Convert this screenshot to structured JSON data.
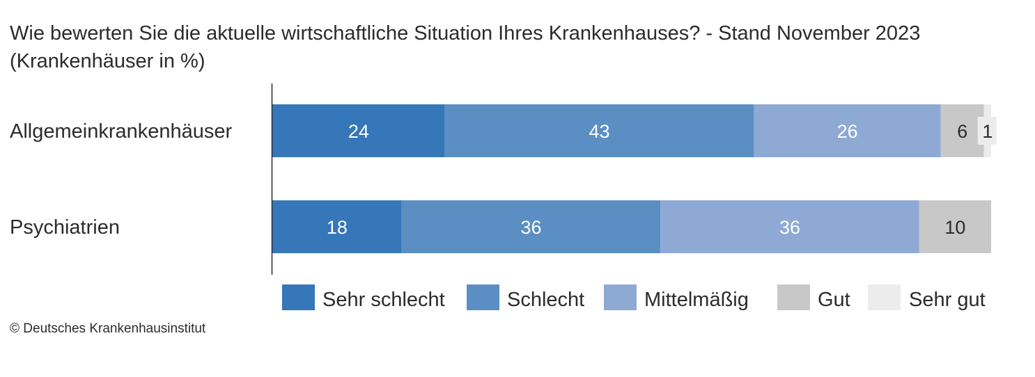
{
  "title_line1": "Wie bewerten Sie die aktuelle wirtschaftliche Situation Ihres Krankenhauses? - Stand November 2023",
  "title_line2": "(Krankenhäuser in %)",
  "copyright": "© Deutsches Krankenhausinstitut",
  "colors": {
    "Sehr schlecht": "#3577b8",
    "Schlecht": "#5b8fc3",
    "Mittelmäßig": "#8eaad4",
    "Gut": "#c8c8c9",
    "Sehr gut": "#ececec",
    "label_on_dark": "#ffffff",
    "label_on_light": "#2b2b2b"
  },
  "chart_data": {
    "type": "bar",
    "orientation": "horizontal",
    "stacked": true,
    "categories": [
      "Allgemeinkrankenhäuser",
      "Psychiatrien"
    ],
    "series": [
      {
        "name": "Sehr schlecht",
        "values": [
          24,
          18
        ]
      },
      {
        "name": "Schlecht",
        "values": [
          43,
          36
        ]
      },
      {
        "name": "Mittelmäßig",
        "values": [
          26,
          36
        ]
      },
      {
        "name": "Gut",
        "values": [
          6,
          10
        ]
      },
      {
        "name": "Sehr gut",
        "values": [
          1,
          0
        ]
      }
    ],
    "xlim": [
      0,
      100
    ],
    "grid": false,
    "legend_position": "bottom"
  }
}
